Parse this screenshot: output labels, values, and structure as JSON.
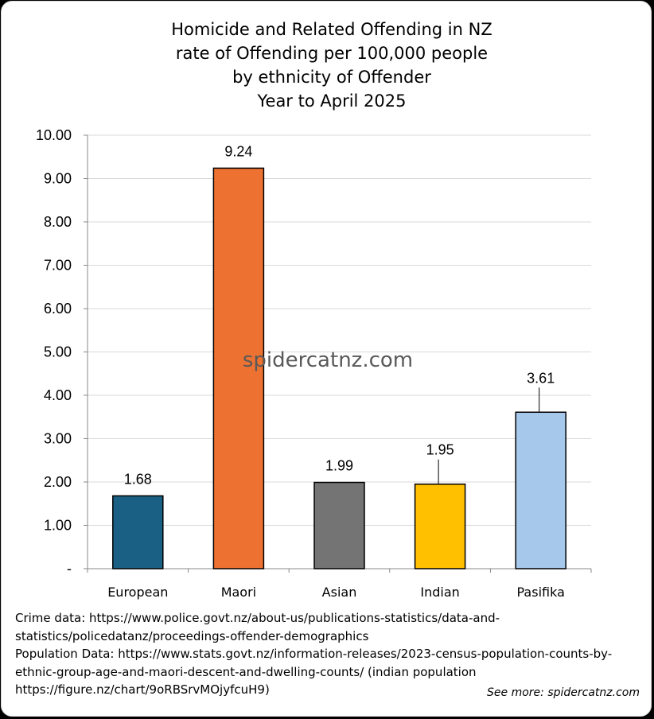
{
  "chart_data": {
    "type": "bar",
    "title_lines": [
      "Homicide and Related Offending in NZ",
      "rate of Offending per 100,000 people",
      "by ethnicity of Offender",
      "Year to April 2025"
    ],
    "categories": [
      "European",
      "Maori",
      "Asian",
      "Indian",
      "Pasifika"
    ],
    "values": [
      1.68,
      9.24,
      1.99,
      1.95,
      3.61
    ],
    "data_labels": [
      "1.68",
      "9.24",
      "1.99",
      "1.95",
      "3.61"
    ],
    "colors": [
      "#1a5f84",
      "#ed7232",
      "#747474",
      "#ffc000",
      "#a6c8ea"
    ],
    "ylim": [
      0,
      10
    ],
    "y_ticks": [
      "-",
      "1.00",
      "2.00",
      "3.00",
      "4.00",
      "5.00",
      "6.00",
      "7.00",
      "8.00",
      "9.00",
      "10.00"
    ],
    "gridlines": true,
    "legend": "none",
    "xlabel": "",
    "ylabel": ""
  },
  "watermark": "spidercatnz.com",
  "sources": [
    "Crime data: https://www.police.govt.nz/about-us/publications-statistics/data-and-",
    "statistics/policedatanz/proceedings-offender-demographics",
    "Population Data: https://www.stats.govt.nz/information-releases/2023-census-population-counts-by-",
    "ethnic-group-age-and-maori-descent-and-dwelling-counts/ (indian population",
    "https://figure.nz/chart/9oRBSrvMOjyfcuH9)"
  ],
  "see_more": "See more: spidercatnz.com"
}
